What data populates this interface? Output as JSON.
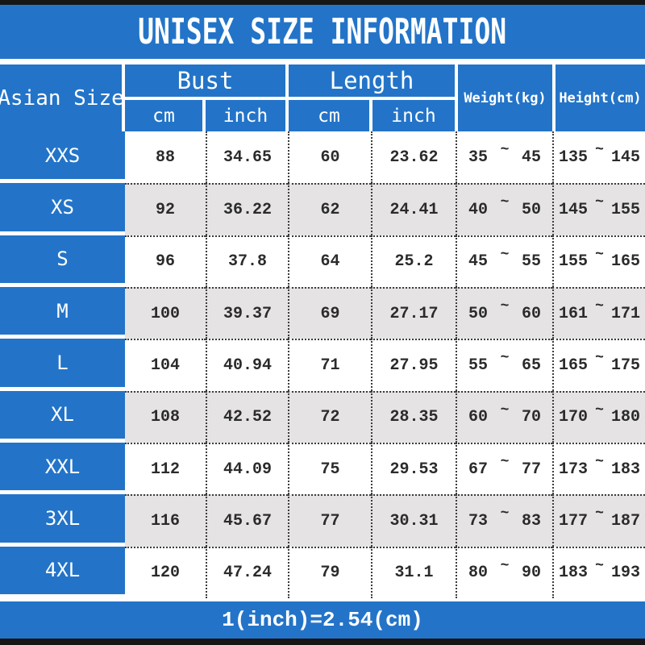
{
  "title": "UNISEX SIZE INFORMATION",
  "colors": {
    "blue": "#2374c8",
    "black_bar": "#161616",
    "row_alt": "#e5e3e4",
    "header_text": "#ffffff",
    "data_text": "#2b2b2b"
  },
  "table": {
    "size_column_header": "Asian Size",
    "groups": [
      {
        "label": "Bust",
        "sub": [
          "cm",
          "inch"
        ]
      },
      {
        "label": "Length",
        "sub": [
          "cm",
          "inch"
        ]
      }
    ],
    "weight_header": "Weight(kg)",
    "height_header": "Height(cm)",
    "range_separator": "~",
    "rows": [
      {
        "size": "XXS",
        "bust_cm": "88",
        "bust_inch": "34.65",
        "length_cm": "60",
        "length_inch": "23.62",
        "weight_min": "35",
        "weight_max": "45",
        "height_min": "135",
        "height_max": "145"
      },
      {
        "size": "XS",
        "bust_cm": "92",
        "bust_inch": "36.22",
        "length_cm": "62",
        "length_inch": "24.41",
        "weight_min": "40",
        "weight_max": "50",
        "height_min": "145",
        "height_max": "155"
      },
      {
        "size": "S",
        "bust_cm": "96",
        "bust_inch": "37.8",
        "length_cm": "64",
        "length_inch": "25.2",
        "weight_min": "45",
        "weight_max": "55",
        "height_min": "155",
        "height_max": "165"
      },
      {
        "size": "M",
        "bust_cm": "100",
        "bust_inch": "39.37",
        "length_cm": "69",
        "length_inch": "27.17",
        "weight_min": "50",
        "weight_max": "60",
        "height_min": "161",
        "height_max": "171"
      },
      {
        "size": "L",
        "bust_cm": "104",
        "bust_inch": "40.94",
        "length_cm": "71",
        "length_inch": "27.95",
        "weight_min": "55",
        "weight_max": "65",
        "height_min": "165",
        "height_max": "175"
      },
      {
        "size": "XL",
        "bust_cm": "108",
        "bust_inch": "42.52",
        "length_cm": "72",
        "length_inch": "28.35",
        "weight_min": "60",
        "weight_max": "70",
        "height_min": "170",
        "height_max": "180"
      },
      {
        "size": "XXL",
        "bust_cm": "112",
        "bust_inch": "44.09",
        "length_cm": "75",
        "length_inch": "29.53",
        "weight_min": "67",
        "weight_max": "77",
        "height_min": "173",
        "height_max": "183"
      },
      {
        "size": "3XL",
        "bust_cm": "116",
        "bust_inch": "45.67",
        "length_cm": "77",
        "length_inch": "30.31",
        "weight_min": "73",
        "weight_max": "83",
        "height_min": "177",
        "height_max": "187"
      },
      {
        "size": "4XL",
        "bust_cm": "120",
        "bust_inch": "47.24",
        "length_cm": "79",
        "length_inch": "31.1",
        "weight_min": "80",
        "weight_max": "90",
        "height_min": "183",
        "height_max": "193"
      }
    ]
  },
  "footer": {
    "note": "1(inch)=2.54(cm)"
  }
}
